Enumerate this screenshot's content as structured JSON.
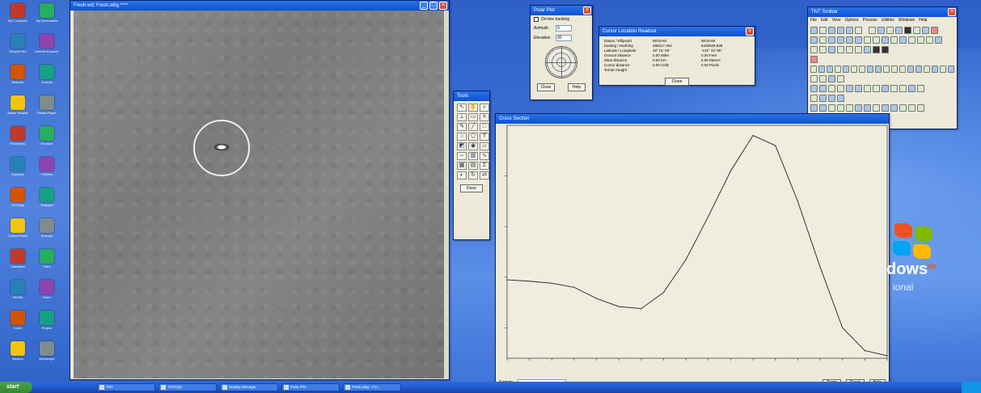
{
  "image_window": {
    "title": "Fresh.wd: Fresh.wbg ****"
  },
  "tools_window": {
    "title": "Tools",
    "icons": [
      "arrow",
      "hand",
      "zoom",
      "ruler",
      "select",
      "crop",
      "pen",
      "line",
      "rect",
      "ellipse",
      "poly",
      "text",
      "fill",
      "picker",
      "eraser",
      "measure",
      "histogram",
      "profile",
      "grid",
      "filter",
      "stats",
      "contrast",
      "rotate",
      "flip"
    ],
    "done_label": "Done"
  },
  "polar_window": {
    "title": "Polar Plot",
    "checkbox_label": "On-line tracking",
    "azimuth_label": "Azimuth",
    "azimuth_value": "0",
    "elevation_label": "Elevation",
    "elevation_value": "90",
    "close_label": "Close",
    "help_label": "Help"
  },
  "info_window": {
    "title": "Cursor Location Readout",
    "rows": [
      [
        "Datum / Ellipsoid",
        "WGS-84",
        "WGS-84"
      ],
      [
        "Easting / Northing",
        "296317.462",
        "5428926.938"
      ],
      [
        "Latitude / Longitude",
        "49° 01' 05\"",
        "-122° 42' 05\""
      ],
      [
        "Ground distance",
        "0.00 Miles",
        "0.00 Feet"
      ],
      [
        "Slant distance",
        "0.00 Km",
        "0.00 Meters"
      ],
      [
        "Cursor distance",
        "0.00 Cells",
        "0.00 Pixels"
      ],
      [
        "Terrain Height",
        "",
        ""
      ]
    ],
    "close_label": "Close"
  },
  "toolbar_window": {
    "title": "TNT Toolbar",
    "menu": [
      "File",
      "Edit",
      "View",
      "Options",
      "Process",
      "Utilities",
      "Windows",
      "Help"
    ]
  },
  "chart_window": {
    "title": "Cross Section",
    "footer_label": "Sample",
    "zoom_label": "Zoom",
    "reset_label": "Reset",
    "help_label": "Help"
  },
  "chart_data": {
    "type": "line",
    "title": "",
    "xlabel": "",
    "ylabel": "",
    "x": [
      0,
      1,
      2,
      3,
      4,
      5,
      6,
      7,
      8,
      9,
      10,
      11,
      12,
      13,
      14,
      15,
      16,
      17
    ],
    "series": [
      {
        "values": [
          375,
          372,
          368,
          360,
          338,
          322,
          318,
          350,
          415,
          500,
          590,
          660,
          640,
          530,
          400,
          280,
          235,
          225
        ]
      }
    ],
    "ylim": [
      220,
      680
    ],
    "yticks": [
      280,
      380,
      480,
      580
    ],
    "grid": false
  },
  "desktop": {
    "logo_text": "dows",
    "logo_sup": "xp",
    "logo_sub": "ional",
    "icons": [
      "My Computer",
      "My Documents",
      "Recycle Bin",
      "Internet Explorer",
      "Network",
      "Outlook",
      "Adobe Reader",
      "Media Player",
      "Photoshop",
      "Shortcut",
      "Explorer",
      "Printers",
      "TNTmips",
      "Notepad",
      "Control Panel",
      "Scanner",
      "Calculator",
      "Paint",
      "WinZip",
      "Word",
      "Excel",
      "Project",
      "Backup",
      "Messenger"
    ]
  },
  "taskbar": {
    "start_label": "start",
    "tasks": [
      "TNT",
      "TNTmips",
      "Display Manager",
      "Polar Plot",
      "Fresh.wbg - Fre..."
    ]
  }
}
